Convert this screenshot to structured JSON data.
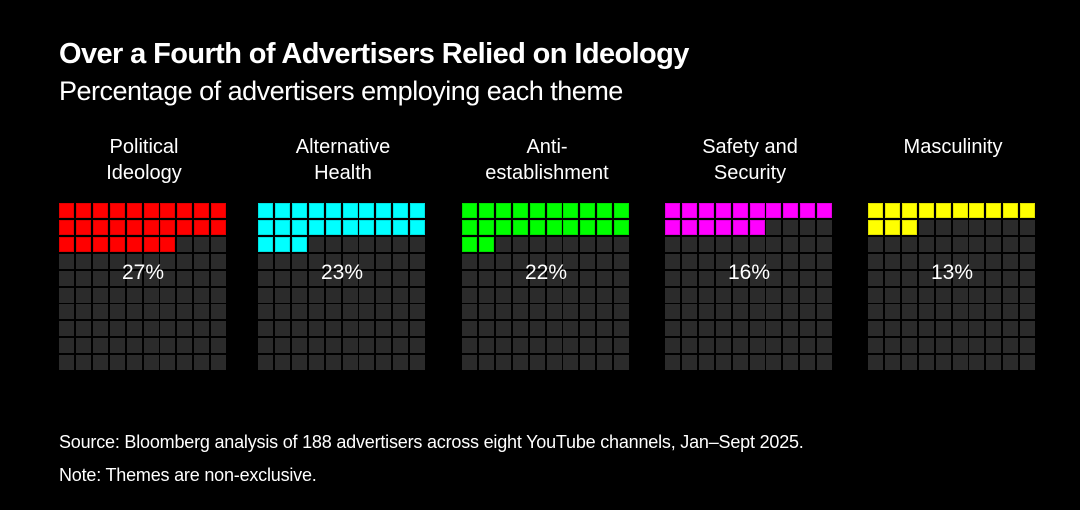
{
  "header": {
    "title": "Over a Fourth of Advertisers Relied on Ideology",
    "subtitle": "Percentage of advertisers employing each theme"
  },
  "footer": {
    "source": "Source: Bloomberg analysis of 188 advertisers across eight YouTube channels, Jan–Sept 2025.",
    "note": "Note: Themes are non-exclusive."
  },
  "chart_data": {
    "type": "waffle",
    "title": "Over a Fourth of Advertisers Relied on Ideology",
    "subtitle": "Percentage of advertisers employing each theme",
    "grid": {
      "rows": 10,
      "cols": 10,
      "fill_order": "row-major from top-left"
    },
    "empty_color": "#2b2b2b",
    "categories": [
      "Political Ideology",
      "Alternative Health",
      "Anti-establishment",
      "Safety and Security",
      "Masculinity"
    ],
    "series": [
      {
        "name": "Political Ideology",
        "label": "Political\nIdeology",
        "value": 27,
        "value_label": "27%",
        "color": "#ff0000"
      },
      {
        "name": "Alternative Health",
        "label": "Alternative\nHealth",
        "value": 23,
        "value_label": "23%",
        "color": "#00ffff"
      },
      {
        "name": "Anti-establishment",
        "label": "Anti-\nestablishment",
        "value": 22,
        "value_label": "22%",
        "color": "#00ff00"
      },
      {
        "name": "Safety and Security",
        "label": "Safety and\nSecurity",
        "value": 16,
        "value_label": "16%",
        "color": "#ff00ff"
      },
      {
        "name": "Masculinity",
        "label": "Masculinity",
        "value": 13,
        "value_label": "13%",
        "color": "#ffff00"
      }
    ],
    "unit": "percent"
  }
}
